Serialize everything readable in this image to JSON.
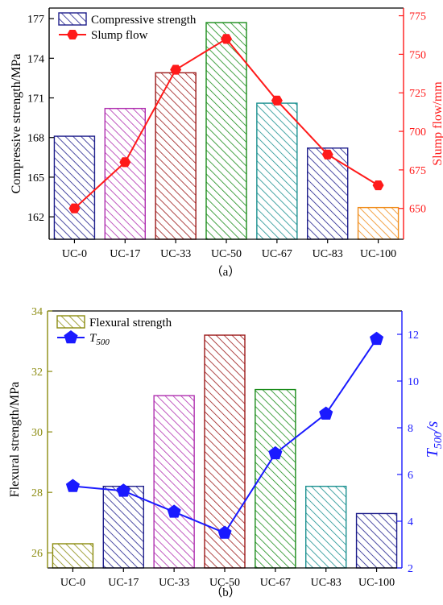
{
  "chart_data": [
    {
      "type": "bar",
      "caption": "（a）",
      "categories": [
        "UC-0",
        "UC-17",
        "UC-33",
        "UC-50",
        "UC-67",
        "UC-83",
        "UC-100"
      ],
      "ylabel": "Compressive strength/MPa",
      "y2label": "Slump flow/mm",
      "ylim": [
        160.3,
        177.8
      ],
      "y2lim": [
        630,
        780
      ],
      "yticks": [
        162,
        165,
        168,
        171,
        174,
        177
      ],
      "y2ticks": [
        650,
        675,
        700,
        725,
        750,
        775
      ],
      "legend_position": "top-left",
      "series": [
        {
          "name": "Compressive strength",
          "kind": "bar",
          "values": [
            168.1,
            170.2,
            172.9,
            176.7,
            170.6,
            167.2,
            162.7
          ],
          "colors": [
            "#1f1f8c",
            "#b030b0",
            "#9c1a1a",
            "#1a8c1a",
            "#1a9090",
            "#1f1f8c",
            "#f08c1a"
          ]
        },
        {
          "name": "Slump flow",
          "kind": "line",
          "axis": "right",
          "color": "#ff1a1a",
          "values": [
            650,
            680,
            740,
            760,
            720,
            685,
            665
          ]
        }
      ]
    },
    {
      "type": "bar",
      "caption": "（b）",
      "categories": [
        "UC-0",
        "UC-17",
        "UC-33",
        "UC-50",
        "UC-67",
        "UC-83",
        "UC-100"
      ],
      "ylabel": "Flexural strength/MPa",
      "y2label": "T500/s",
      "ylim": [
        25.5,
        34
      ],
      "y2lim": [
        2,
        13
      ],
      "yticks": [
        26,
        28,
        30,
        32,
        34
      ],
      "y2ticks": [
        2,
        4,
        6,
        8,
        10,
        12
      ],
      "legend_position": "top-left",
      "series": [
        {
          "name": "Flexural strength",
          "kind": "bar",
          "values": [
            26.3,
            28.2,
            31.2,
            33.2,
            31.4,
            28.2,
            27.3
          ],
          "colors": [
            "#8c8c10",
            "#1f1f8c",
            "#b030b0",
            "#9c1a1a",
            "#1a8c1a",
            "#1a9090",
            "#1f1f8c"
          ]
        },
        {
          "name": "T500",
          "kind": "line",
          "axis": "right",
          "color": "#1a1aff",
          "values": [
            5.5,
            5.3,
            4.4,
            3.5,
            6.9,
            8.6,
            11.8
          ]
        }
      ]
    }
  ]
}
